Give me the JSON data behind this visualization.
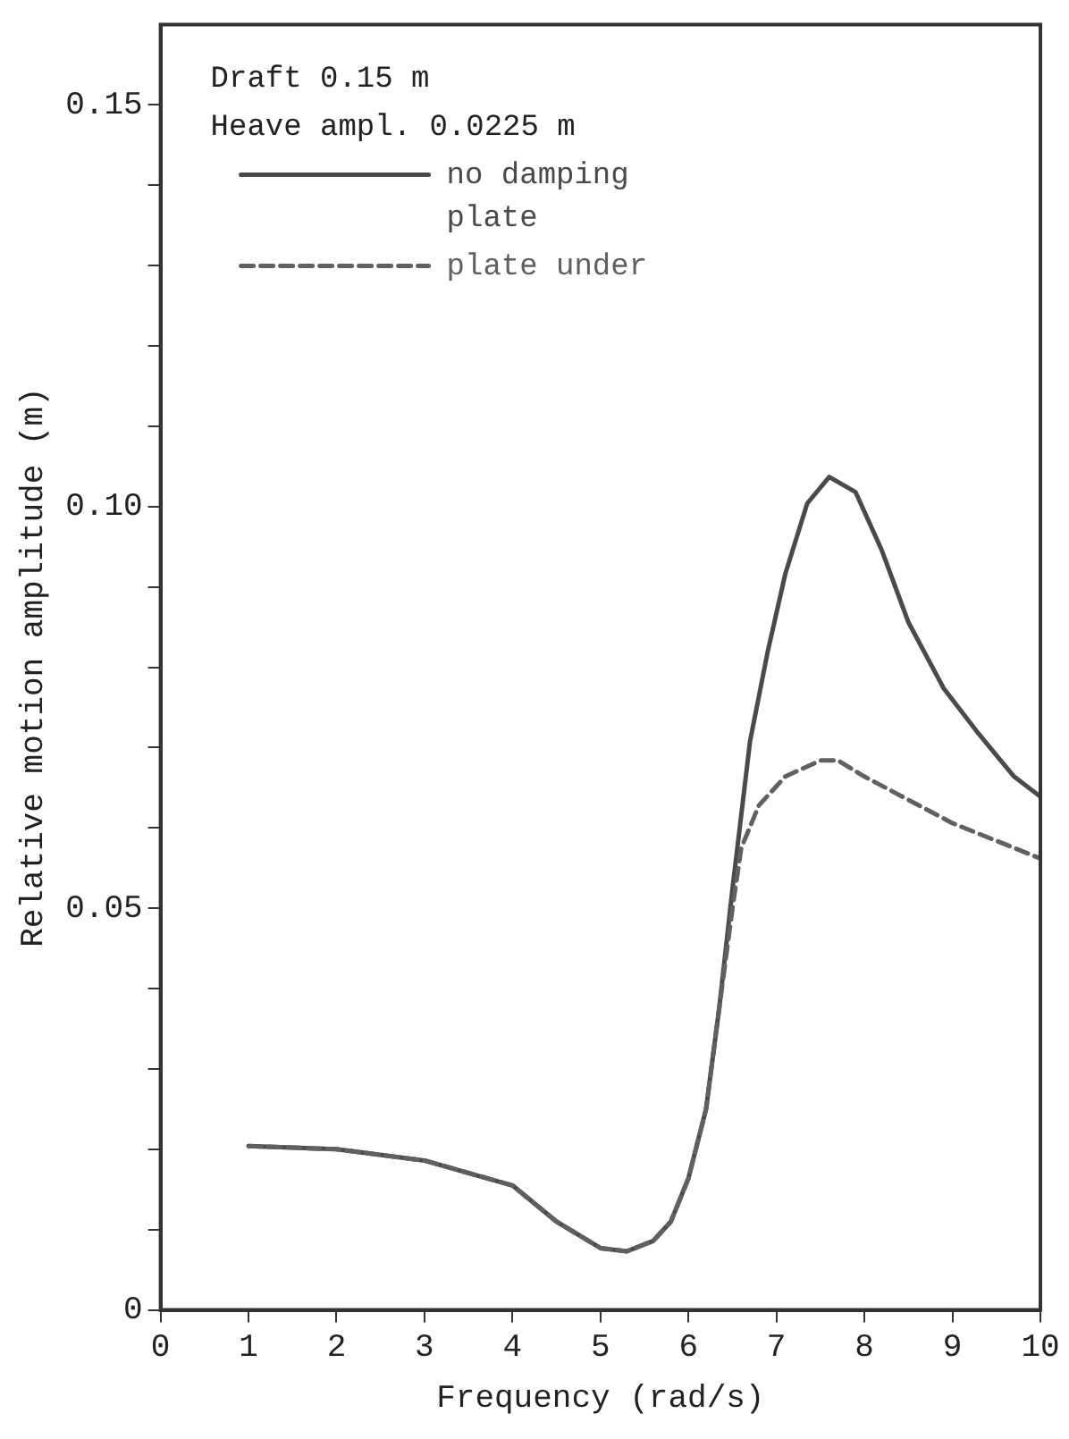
{
  "chart_data": {
    "type": "line",
    "xlabel": "Frequency (rad/s)",
    "ylabel": "Relative motion amplitude (m)",
    "annotations": [
      "Draft 0.15 m",
      "Heave ampl. 0.0225 m"
    ],
    "xlim": [
      0,
      10
    ],
    "xticks": [
      0,
      1,
      2,
      3,
      4,
      5,
      6,
      7,
      8,
      9,
      10
    ],
    "ylim": [
      0,
      0.16
    ],
    "yticks": [
      0,
      {
        "value": 0.01,
        "label": null
      },
      {
        "value": 0.02,
        "label": null
      },
      {
        "value": 0.03,
        "label": null
      },
      {
        "value": 0.04,
        "label": null
      },
      {
        "value": 0.05,
        "label": "0.05"
      },
      {
        "value": 0.06,
        "label": null
      },
      {
        "value": 0.07,
        "label": null
      },
      {
        "value": 0.08,
        "label": null
      },
      {
        "value": 0.09,
        "label": null
      },
      {
        "value": 0.1,
        "label": "0.10"
      },
      {
        "value": 0.11,
        "label": null
      },
      {
        "value": 0.12,
        "label": null
      },
      {
        "value": 0.13,
        "label": null
      },
      {
        "value": 0.14,
        "label": null
      },
      {
        "value": 0.15,
        "label": "0.15"
      }
    ],
    "grid": false,
    "legend": "top left",
    "marker": "none",
    "series": [
      {
        "name": "no damping plate",
        "color": "#4a4a4a",
        "line_style": "solid",
        "x": [
          1,
          2,
          3,
          4,
          4.5,
          5,
          5.3,
          5.6,
          5.8,
          6,
          6.2,
          6.35,
          6.5,
          6.7,
          6.9,
          7.1,
          7.35,
          7.6,
          7.9,
          8.2,
          8.5,
          8.9,
          9.3,
          9.7,
          10
        ],
        "values": [
          0.0204,
          0.02,
          0.0186,
          0.0155,
          0.011,
          0.0077,
          0.0073,
          0.0086,
          0.011,
          0.0164,
          0.025,
          0.0376,
          0.0524,
          0.0708,
          0.0819,
          0.0916,
          0.1004,
          0.1037,
          0.1018,
          0.0945,
          0.0856,
          0.0774,
          0.0717,
          0.0664,
          0.0639
        ]
      },
      {
        "name": "plate under",
        "color": "#606060",
        "line_style": "dashed",
        "x": [
          1,
          2,
          3,
          4,
          4.5,
          5,
          5.3,
          5.6,
          5.8,
          6,
          6.2,
          6.35,
          6.5,
          6.6,
          6.8,
          7.1,
          7.5,
          7.7,
          8,
          8.5,
          9,
          9.5,
          10
        ],
        "values": [
          0.0204,
          0.02,
          0.0186,
          0.0155,
          0.011,
          0.0077,
          0.0073,
          0.0086,
          0.011,
          0.0164,
          0.025,
          0.0376,
          0.05,
          0.0575,
          0.0628,
          0.0664,
          0.0684,
          0.0684,
          0.0664,
          0.0635,
          0.0606,
          0.0584,
          0.0562
        ]
      }
    ]
  }
}
